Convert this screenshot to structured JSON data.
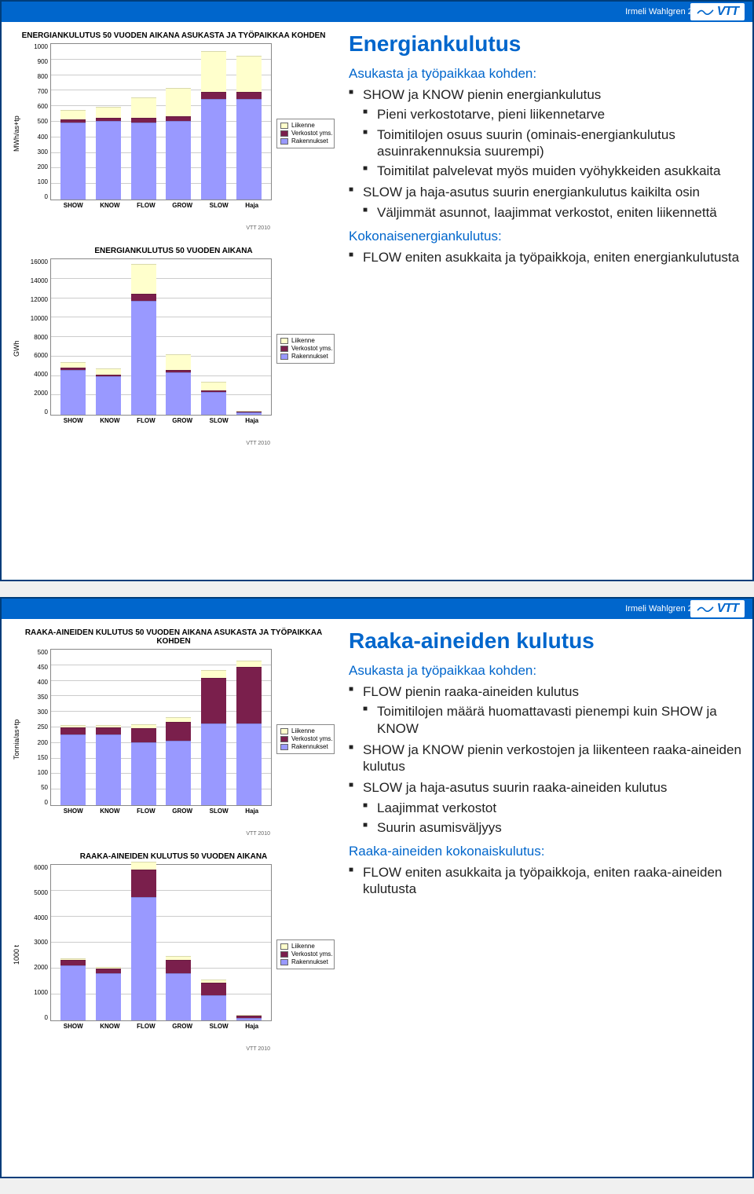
{
  "colors": {
    "rakennukset": "#9999ff",
    "verkostot": "#7a1f4c",
    "liikenne": "#ffffcc",
    "grid": "#cccccc",
    "border": "#888888",
    "title": "#0066cc",
    "header_bg": "#0066cc"
  },
  "logo_text": "VTT",
  "slides": [
    {
      "header": "Irmeli Wahlgren  27.10.2010     5",
      "title": "Energiankulutus",
      "intro": "Asukasta ja työpaikkaa kohden:",
      "bullets1": [
        {
          "t": "SHOW ja KNOW pienin energiankulutus",
          "sub": [
            "Pieni verkostotarve, pieni liikennetarve",
            "Toimitilojen osuus suurin (ominais-energiankulutus asuinrakennuksia suurempi)",
            "Toimitilat palvelevat myös muiden vyöhykkeiden asukkaita"
          ]
        },
        {
          "t": "SLOW ja haja-asutus suurin energiankulutus kaikilta osin",
          "sub": [
            "Väljimmät asunnot, laajimmat verkostot, eniten liikennettä"
          ]
        }
      ],
      "section2": "Kokonaisenergiankulutus:",
      "bullets2": [
        {
          "t": "FLOW eniten asukkaita ja työpaikkoja, eniten energiankulutusta"
        }
      ],
      "chart1": {
        "title": "ENERGIANKULUTUS 50 VUODEN AIKANA ASUKASTA JA TYÖPAIKKAA KOHDEN",
        "ylabel": "MWh/as+tp",
        "ymax": 1000,
        "ystep": 100,
        "categories": [
          "SHOW",
          "KNOW",
          "FLOW",
          "GROW",
          "SLOW",
          "Haja"
        ],
        "series_colors": [
          "#9999ff",
          "#7a1f4c",
          "#ffffcc"
        ],
        "legend": [
          "Liikenne",
          "Verkostot yms.",
          "Rakennukset"
        ],
        "stacks": [
          [
            490,
            20,
            60
          ],
          [
            500,
            20,
            70
          ],
          [
            490,
            30,
            130
          ],
          [
            500,
            30,
            180
          ],
          [
            640,
            45,
            260
          ],
          [
            640,
            45,
            230
          ]
        ],
        "footer": "VTT 2010"
      },
      "chart2": {
        "title": "ENERGIANKULUTUS 50 VUODEN AIKANA",
        "ylabel": "GWh",
        "ymax": 16000,
        "ystep": 2000,
        "categories": [
          "SHOW",
          "KNOW",
          "FLOW",
          "GROW",
          "SLOW",
          "Haja"
        ],
        "series_colors": [
          "#9999ff",
          "#7a1f4c",
          "#ffffcc"
        ],
        "legend": [
          "Liikenne",
          "Verkostot yms.",
          "Rakennukset"
        ],
        "stacks": [
          [
            4600,
            200,
            600
          ],
          [
            3900,
            200,
            600
          ],
          [
            11600,
            700,
            3100
          ],
          [
            4300,
            250,
            1600
          ],
          [
            2300,
            150,
            950
          ],
          [
            250,
            20,
            110
          ]
        ],
        "footer": "VTT 2010"
      }
    },
    {
      "header": "Irmeli Wahlgren  27.10.2010     6",
      "title": "Raaka-aineiden kulutus",
      "intro": "Asukasta ja työpaikkaa kohden:",
      "bullets1": [
        {
          "t": "FLOW pienin raaka-aineiden kulutus",
          "sub": [
            "Toimitilojen määrä huomattavasti pienempi kuin SHOW ja KNOW"
          ]
        },
        {
          "t": "SHOW ja KNOW pienin verkostojen ja liikenteen raaka-aineiden kulutus"
        },
        {
          "t": "SLOW ja haja-asutus suurin raaka-aineiden kulutus",
          "sub": [
            "Laajimmat verkostot",
            "Suurin asumisväljyys"
          ]
        }
      ],
      "section2": "Raaka-aineiden kokonaiskulutus:",
      "bullets2": [
        {
          "t": "FLOW eniten asukkaita ja työpaikkoja, eniten raaka-aineiden kulutusta"
        }
      ],
      "chart1": {
        "title": "RAAKA-AINEIDEN KULUTUS 50 VUODEN AIKANA ASUKASTA JA TYÖPAIKKAA KOHDEN",
        "ylabel": "Tonnia/as+tp",
        "ymax": 500,
        "ystep": 50,
        "categories": [
          "SHOW",
          "KNOW",
          "FLOW",
          "GROW",
          "SLOW",
          "Haja"
        ],
        "series_colors": [
          "#9999ff",
          "#7a1f4c",
          "#ffffcc"
        ],
        "legend": [
          "Liikenne",
          "Verkostot yms.",
          "Rakennukset"
        ],
        "stacks": [
          [
            225,
            22,
            8
          ],
          [
            225,
            22,
            8
          ],
          [
            200,
            45,
            12
          ],
          [
            205,
            60,
            15
          ],
          [
            260,
            145,
            25
          ],
          [
            260,
            180,
            20
          ]
        ],
        "footer": "VTT 2010"
      },
      "chart2": {
        "title": "RAAKA-AINEIDEN KULUTUS 50 VUODEN AIKANA",
        "ylabel": "1000 t",
        "ymax": 6000,
        "ystep": 1000,
        "categories": [
          "SHOW",
          "KNOW",
          "FLOW",
          "GROW",
          "SLOW",
          "Haja"
        ],
        "series_colors": [
          "#9999ff",
          "#7a1f4c",
          "#ffffcc"
        ],
        "legend": [
          "Liikenne",
          "Verkostot yms.",
          "Rakennukset"
        ],
        "stacks": [
          [
            2100,
            200,
            80
          ],
          [
            1800,
            180,
            60
          ],
          [
            4700,
            1050,
            300
          ],
          [
            1800,
            500,
            150
          ],
          [
            950,
            500,
            100
          ],
          [
            100,
            80,
            15
          ]
        ],
        "footer": "VTT 2010"
      }
    }
  ]
}
